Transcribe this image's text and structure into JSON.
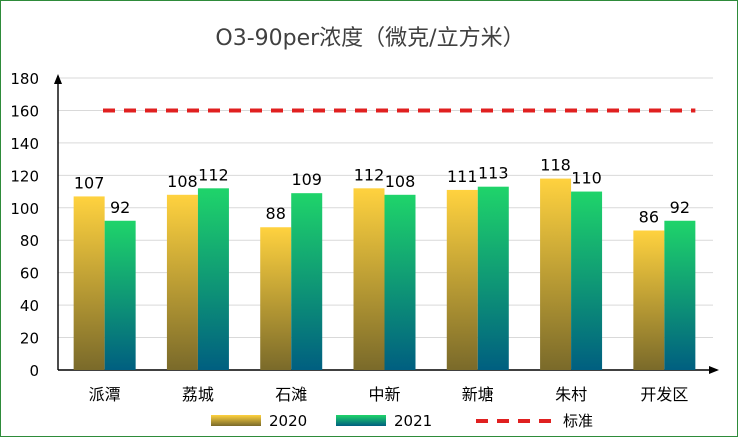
{
  "chart_data": {
    "type": "bar",
    "title": "O3-90per浓度（微克/立方米）",
    "categories": [
      "派潭",
      "荔城",
      "石滩",
      "中新",
      "新塘",
      "朱村",
      "开发区"
    ],
    "series": [
      {
        "name": "2020",
        "values": [
          107,
          108,
          88,
          112,
          111,
          118,
          86
        ]
      },
      {
        "name": "2021",
        "values": [
          92,
          112,
          109,
          108,
          113,
          110,
          92
        ]
      }
    ],
    "reference_line": {
      "name": "标准",
      "value": 160,
      "style": "dashed",
      "color": "#e02020"
    },
    "ylim": [
      0,
      180
    ],
    "yticks": [
      0,
      20,
      40,
      60,
      80,
      100,
      120,
      140,
      160,
      180
    ],
    "grid": true,
    "legend_position": "bottom",
    "colors": {
      "s2020_top": "#ffd23f",
      "s2020_bottom": "#7a6a2a",
      "s2021_top": "#1fd46a",
      "s2021_bottom": "#005f80",
      "grid": "#d9d9d9",
      "axis": "#000000",
      "frame": "#2e8b3a"
    }
  }
}
